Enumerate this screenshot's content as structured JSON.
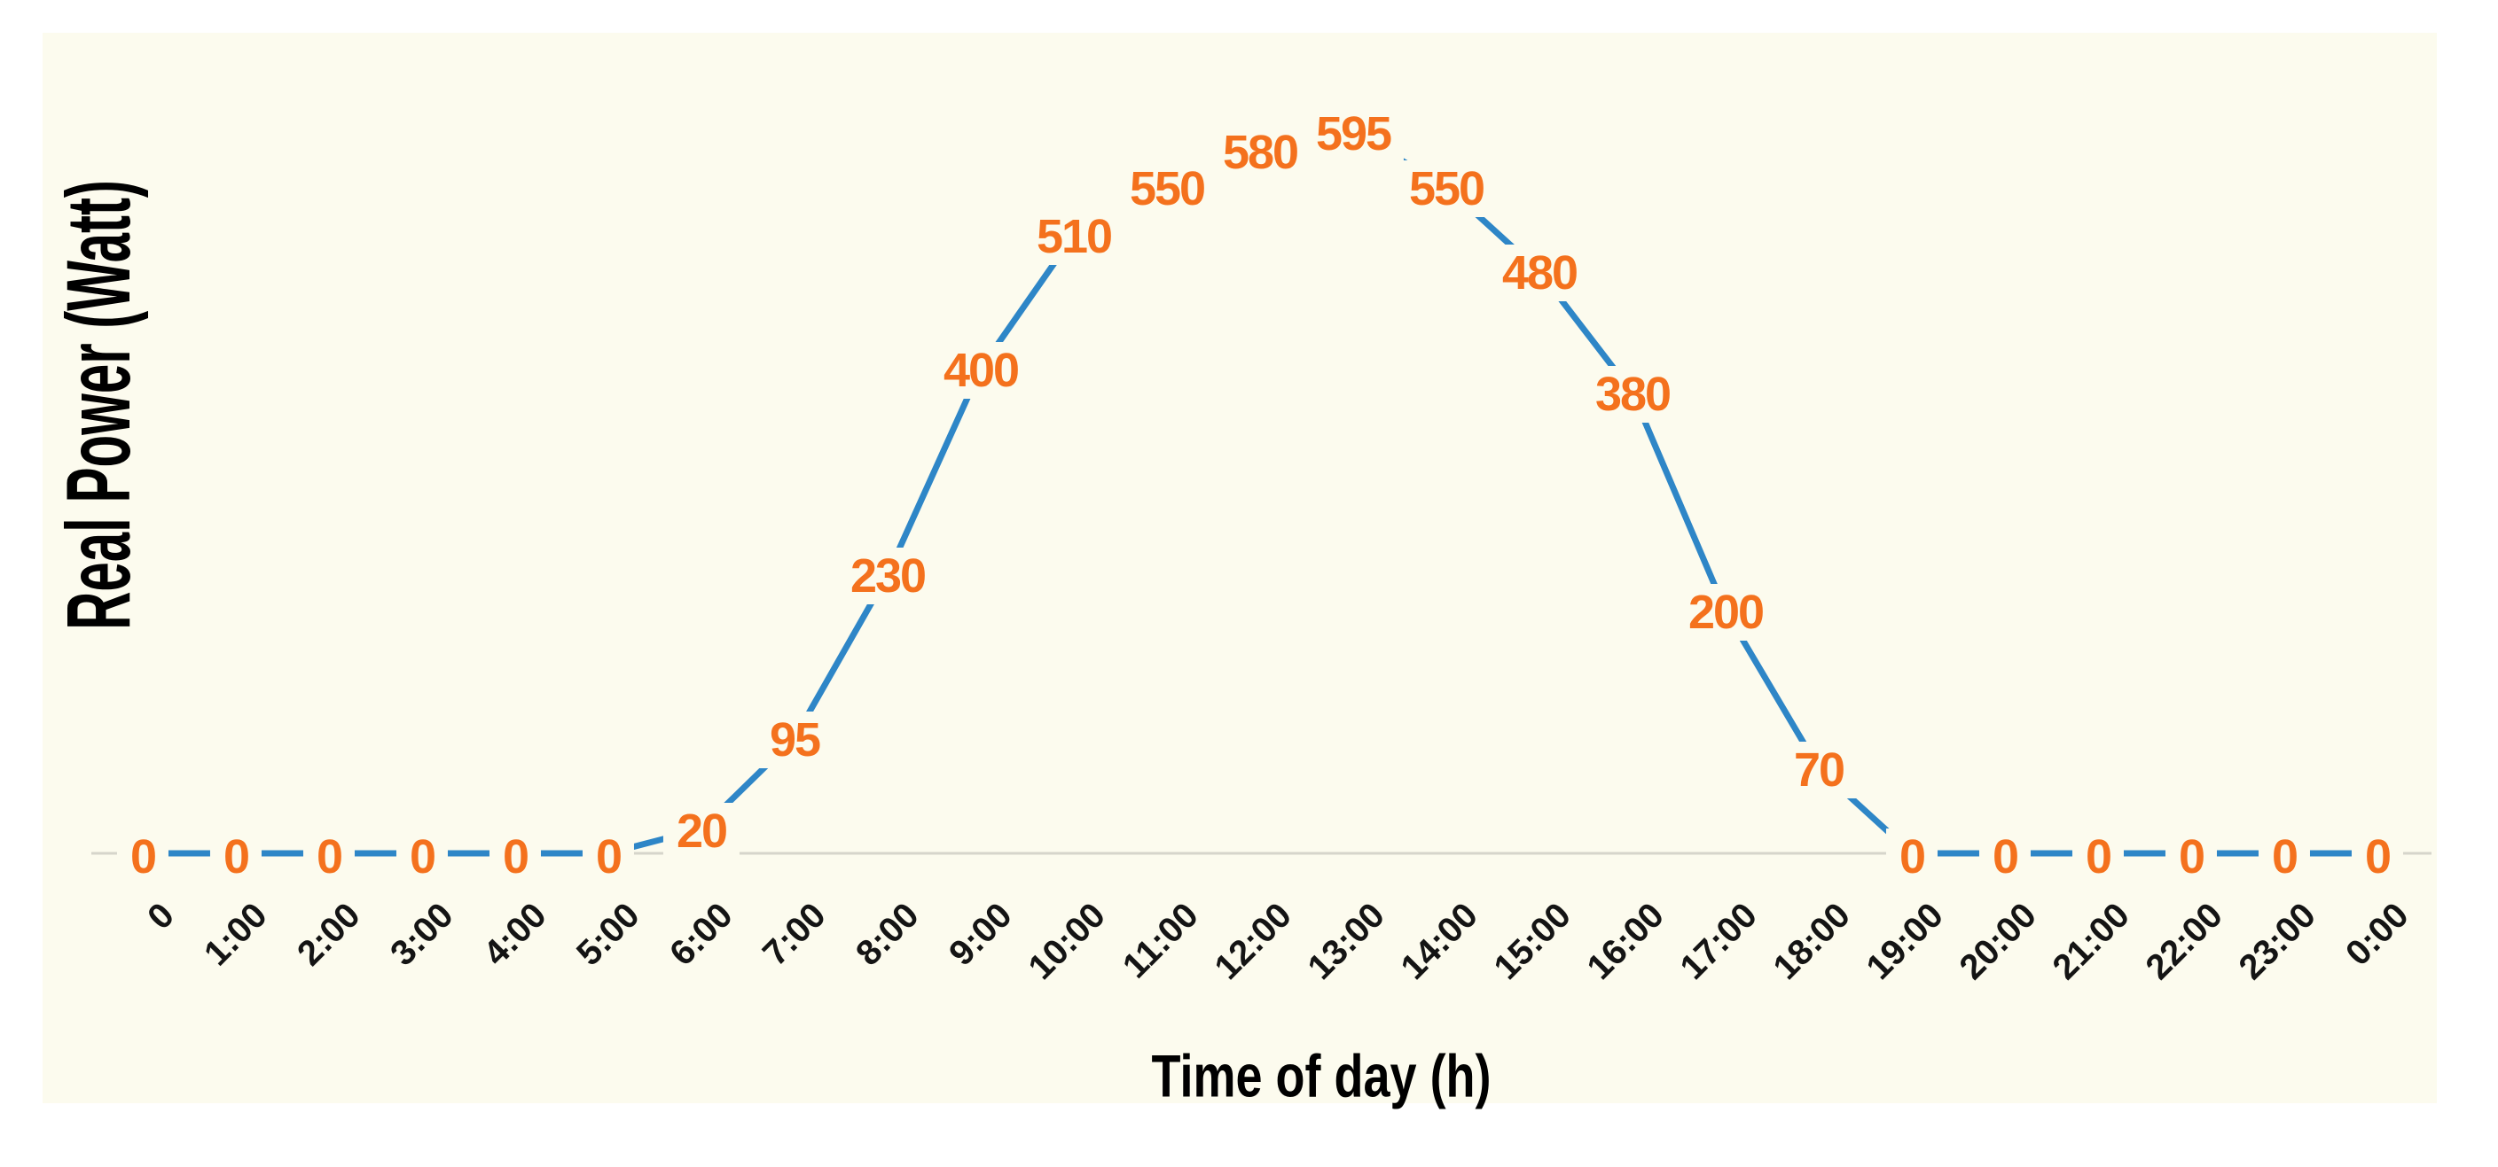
{
  "chart_data": {
    "type": "line",
    "title": "",
    "xlabel": "Time of day (h)",
    "ylabel": "Real Power (Watt)",
    "x": [
      "0",
      "1:00",
      "2:00",
      "3:00",
      "4:00",
      "5:00",
      "6:00",
      "7:00",
      "8:00",
      "9:00",
      "10:00",
      "11:00",
      "12:00",
      "13:00",
      "14:00",
      "15:00",
      "16:00",
      "17:00",
      "18:00",
      "19:00",
      "20:00",
      "21:00",
      "22:00",
      "23:00",
      "0:00"
    ],
    "series": [
      {
        "values": [
          0,
          0,
          0,
          0,
          0,
          0,
          20,
          95,
          230,
          400,
          510,
          550,
          580,
          595,
          550,
          480,
          380,
          200,
          70,
          0,
          0,
          0,
          0,
          0,
          0
        ]
      }
    ],
    "data_labels_shown": true,
    "ylim": [
      0,
      660
    ],
    "grid": false,
    "legend": "none",
    "colors": {
      "line": "#2E86C7",
      "data_label_text": "#F4711D",
      "plot_background": "#FCFBEE",
      "axis_line": "#D6D5CB",
      "tick_text": "#141414",
      "title_text": "#000000",
      "page_background": "#FFFFFF"
    }
  }
}
